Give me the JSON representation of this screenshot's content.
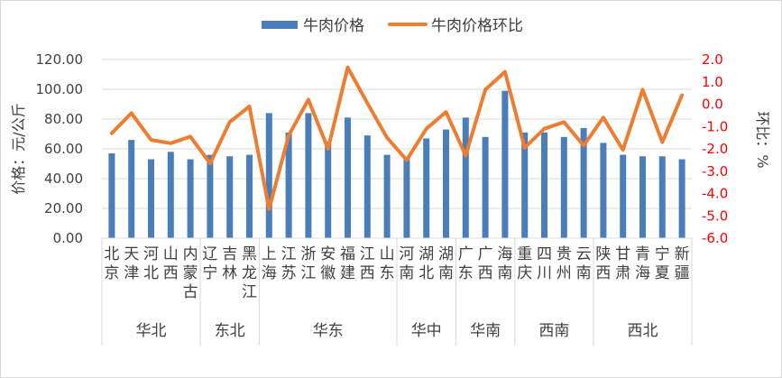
{
  "chart_data": {
    "type": "bar",
    "legend": {
      "placement": "top",
      "items": [
        "牛肉价格",
        "牛肉价格环比"
      ]
    },
    "y_left": {
      "label": "价格：元/公斤",
      "min": 0,
      "max": 120,
      "step": 20,
      "tick_labels": [
        "0.00",
        "20.00",
        "40.00",
        "60.00",
        "80.00",
        "100.00",
        "120.00"
      ]
    },
    "y_right": {
      "label": "环比：%",
      "min": -6,
      "max": 2,
      "step": 1,
      "tick_labels": [
        "-6.0",
        "-5.0",
        "-4.0",
        "-3.0",
        "-2.0",
        "-1.0",
        "0.0",
        "1.0",
        "2.0"
      ],
      "tick_color": "#ff0000"
    },
    "categories": [
      "北京",
      "天津",
      "河北",
      "山西",
      "内蒙古",
      "辽宁",
      "吉林",
      "黑龙江",
      "上海",
      "江苏",
      "浙江",
      "安徽",
      "福建",
      "江西",
      "山东",
      "河南",
      "湖北",
      "湖南",
      "广东",
      "广西",
      "海南",
      "重庆",
      "四川",
      "贵州",
      "云南",
      "陕西",
      "甘肃",
      "青海",
      "宁夏",
      "新疆"
    ],
    "groups": [
      {
        "name": "华北",
        "count": 5
      },
      {
        "name": "东北",
        "count": 3
      },
      {
        "name": "华东",
        "count": 7
      },
      {
        "name": "华中",
        "count": 3
      },
      {
        "name": "华南",
        "count": 3
      },
      {
        "name": "西南",
        "count": 4
      },
      {
        "name": "西北",
        "count": 5
      }
    ],
    "series": [
      {
        "name": "牛肉价格",
        "type": "bar",
        "axis": "left",
        "color": "#4a7ebb",
        "values": [
          57,
          66,
          53,
          58,
          53,
          56,
          55,
          56,
          84,
          71,
          84,
          65,
          81,
          69,
          56,
          54,
          67,
          73,
          81,
          68,
          99,
          71,
          71,
          68,
          74,
          64,
          56,
          55,
          55,
          53
        ]
      },
      {
        "name": "牛肉价格环比",
        "type": "line",
        "axis": "right",
        "color": "#ed7d31",
        "values": [
          -1.3,
          -0.4,
          -1.6,
          -1.75,
          -1.45,
          -2.65,
          -0.8,
          -0.1,
          -4.7,
          -1.4,
          0.2,
          -2.0,
          1.65,
          0.05,
          -1.5,
          -2.5,
          -1.1,
          -0.35,
          -2.3,
          0.65,
          1.45,
          -1.95,
          -1.1,
          -0.8,
          -1.85,
          -0.6,
          -2.05,
          0.65,
          -1.7,
          0.4
        ]
      }
    ]
  }
}
